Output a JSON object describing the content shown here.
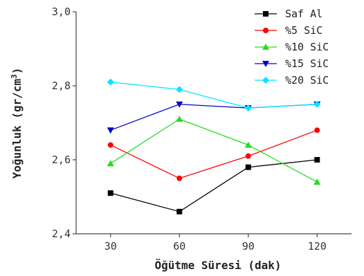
{
  "chart_data": {
    "type": "line",
    "title": "",
    "xlabel": "Öğütme Süresi (dak)",
    "ylabel": "Yoğunluk (gr/cm³)",
    "ylabel_main": "Yoğunluk (gr/cm",
    "ylabel_sup": "3",
    "ylabel_close": ")",
    "x": [
      30,
      60,
      90,
      120
    ],
    "x_tick_labels": [
      "30",
      "60",
      "90",
      "120"
    ],
    "xlim": [
      15,
      135
    ],
    "ylim": [
      2.4,
      3.0
    ],
    "y_ticks": [
      2.4,
      2.6,
      2.8,
      3.0
    ],
    "y_tick_labels": [
      "2,4",
      "2,6",
      "2,8",
      "3,0"
    ],
    "grid": false,
    "legend_position": "top-right",
    "series": [
      {
        "name": "Saf Al",
        "values": [
          2.51,
          2.46,
          2.58,
          2.6
        ],
        "color": "#000000",
        "marker": "square"
      },
      {
        "name": "%5 SiC",
        "values": [
          2.64,
          2.55,
          2.61,
          2.68
        ],
        "color": "#ff0000",
        "marker": "circle"
      },
      {
        "name": "%10 SiC",
        "values": [
          2.59,
          2.71,
          2.64,
          2.54
        ],
        "color": "#22dd22",
        "marker": "triangle-up"
      },
      {
        "name": "%15 SiC",
        "values": [
          2.68,
          2.75,
          2.74,
          2.75
        ],
        "color": "#0000cc",
        "marker": "triangle-down"
      },
      {
        "name": "%20 SiC",
        "values": [
          2.81,
          2.79,
          2.74,
          2.75
        ],
        "color": "#00e5ff",
        "marker": "diamond"
      }
    ]
  }
}
